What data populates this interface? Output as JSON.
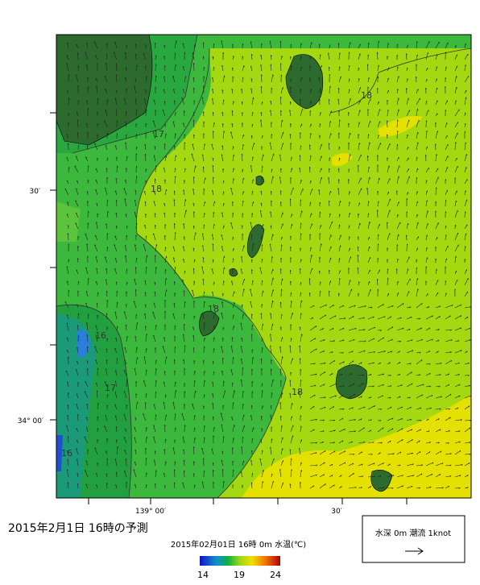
{
  "map": {
    "title": "2015年2月1日 16時の予測",
    "subtitle": "2015年02月01日 16時 0m 水温(℃)",
    "lat_labels": [
      "30′",
      "34° 00′"
    ],
    "lon_labels": [
      "139° 00′",
      "30′"
    ],
    "contour_labels": [
      "18",
      "17",
      "18",
      "16",
      "17",
      "16",
      "18",
      "18"
    ],
    "colorbar": {
      "range": [
        14,
        24
      ],
      "ticks": [
        14,
        19,
        24
      ]
    },
    "legend": "水深 0m 潮流 1knot"
  }
}
